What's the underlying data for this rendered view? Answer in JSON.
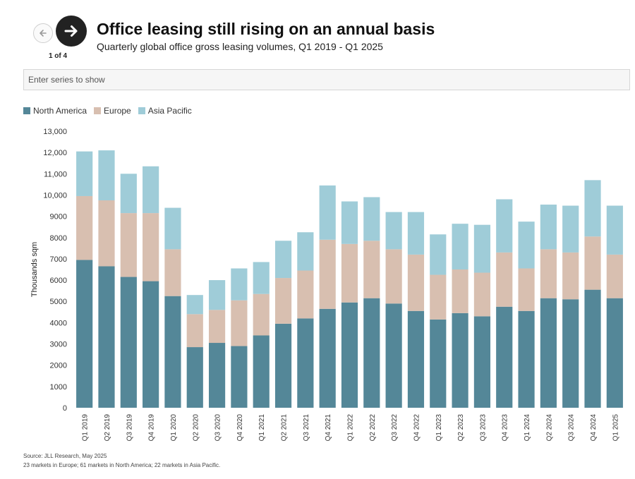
{
  "nav": {
    "prev_icon": "arrow-left-icon",
    "next_icon": "arrow-right-icon",
    "pager": "1 of 4"
  },
  "header": {
    "title": "Office leasing still rising on an annual basis",
    "subtitle": "Quarterly global office gross leasing volumes, Q1 2019 - Q1 2025"
  },
  "search": {
    "placeholder": "Enter series to show"
  },
  "colors": {
    "north_america": "#548798",
    "europe": "#d8bfb0",
    "asia_pacific": "#9fccd8"
  },
  "chart_data": {
    "type": "bar",
    "stacked": true,
    "ylabel": "Thousands sqm",
    "xlabel": "",
    "ylim": [
      0,
      13000
    ],
    "yticks": [
      "0",
      "1000",
      "2000",
      "3000",
      "4000",
      "5000",
      "6000",
      "7000",
      "8000",
      "9000",
      "10,000",
      "11,000",
      "12,000",
      "13,000"
    ],
    "grid": false,
    "legend_position": "top-left",
    "categories": [
      "Q1 2019",
      "Q2 2019",
      "Q3 2019",
      "Q4 2019",
      "Q1 2020",
      "Q2 2020",
      "Q3 2020",
      "Q4 2020",
      "Q1 2021",
      "Q2 2021",
      "Q3 2021",
      "Q4 2021",
      "Q1 2022",
      "Q2 2022",
      "Q3 2022",
      "Q4 2022",
      "Q1 2023",
      "Q2 2023",
      "Q3 2023",
      "Q4 2023",
      "Q1 2024",
      "Q2 2024",
      "Q3 2024",
      "Q4 2024",
      "Q1 2025"
    ],
    "series": [
      {
        "name": "North America",
        "values": [
          6950,
          6650,
          6150,
          5950,
          5250,
          2850,
          3050,
          2900,
          3400,
          3950,
          4200,
          4650,
          4950,
          5150,
          4900,
          4550,
          4150,
          4450,
          4300,
          4750,
          4550,
          5150,
          5100,
          5550,
          5150
        ]
      },
      {
        "name": "Europe",
        "values": [
          3000,
          3100,
          3000,
          3200,
          2200,
          1550,
          1550,
          2150,
          1950,
          2150,
          2250,
          3250,
          2750,
          2700,
          2550,
          2650,
          2100,
          2050,
          2050,
          2550,
          2000,
          2300,
          2200,
          2500,
          2050
        ]
      },
      {
        "name": "Asia Pacific",
        "values": [
          2100,
          2350,
          1850,
          2200,
          1950,
          900,
          1400,
          1500,
          1500,
          1750,
          1800,
          2550,
          2000,
          2050,
          1750,
          2000,
          1900,
          2150,
          2250,
          2500,
          2200,
          2100,
          2200,
          2650,
          2300
        ]
      }
    ]
  },
  "footer": {
    "source": "Source: JLL Research, May 2025",
    "note": "23 markets in Europe; 61 markets in North America; 22 markets in Asia Pacific."
  }
}
